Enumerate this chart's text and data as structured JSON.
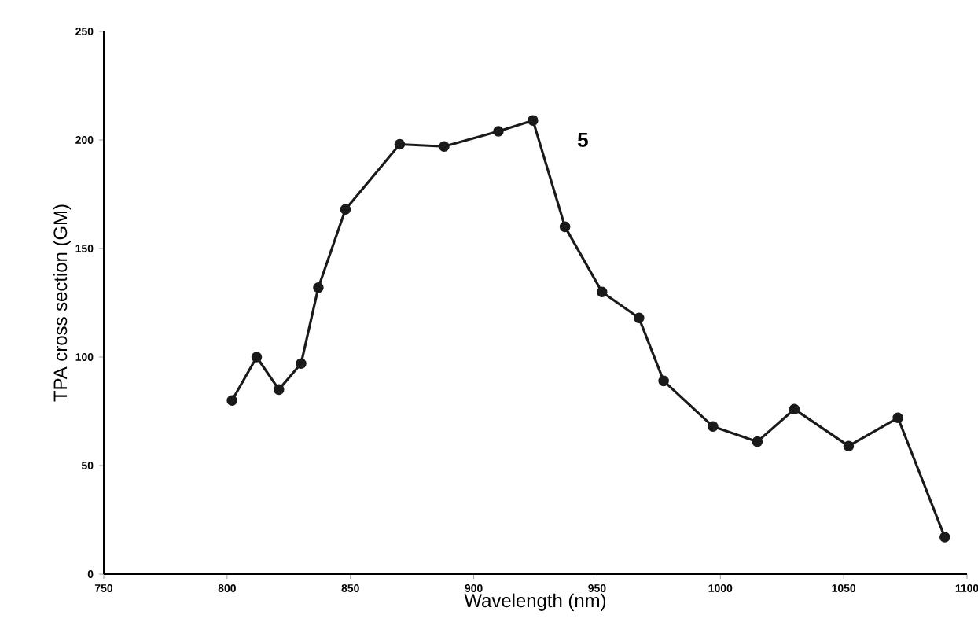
{
  "chart_data": {
    "type": "line",
    "xlabel": "Wavelength  (nm)",
    "ylabel": "TPA cross section  (GM)",
    "annotations": [
      "5"
    ],
    "series": [
      {
        "color": "#1a1a1a",
        "x": [
          802,
          812,
          821,
          830,
          837,
          848,
          870,
          888,
          910,
          924,
          937,
          952,
          967,
          977,
          997,
          1015,
          1030,
          1052,
          1072,
          1091
        ],
        "values": [
          80,
          100,
          85,
          97,
          132,
          168,
          198,
          197,
          204,
          209,
          160,
          130,
          118,
          89,
          68,
          61,
          76,
          59,
          72,
          17
        ]
      }
    ],
    "xlim": [
      750,
      1100
    ],
    "xticks": [
      750,
      800,
      850,
      900,
      950,
      1000,
      1050,
      1100
    ],
    "ylim": [
      0,
      250
    ],
    "yticks": [
      0,
      50,
      100,
      150,
      200,
      250
    ],
    "grid": false,
    "marker": "circle",
    "line_style": "solid"
  }
}
